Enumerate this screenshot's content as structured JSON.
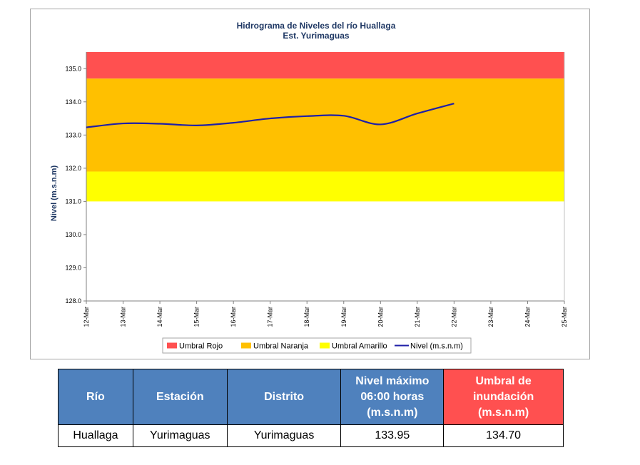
{
  "chart_data": {
    "type": "line",
    "title": "Hidrograma de Niveles del río Huallaga",
    "subtitle": "Est. Yurimaguas",
    "ylabel": "Nivel (m.s.n.m)",
    "xlabel": "",
    "ylim": [
      128.0,
      135.5
    ],
    "yticks": [
      "128.0",
      "129.0",
      "130.0",
      "131.0",
      "132.0",
      "133.0",
      "134.0",
      "135.0"
    ],
    "categories": [
      "12-Mar",
      "13-Mar",
      "14-Mar",
      "15-Mar",
      "16-Mar",
      "17-Mar",
      "18-Mar",
      "19-Mar",
      "20-Mar",
      "21-Mar",
      "22-Mar",
      "23-Mar",
      "24-Mar",
      "25-Mar"
    ],
    "bands": [
      {
        "name": "Umbral Rojo",
        "from": 134.7,
        "to": 135.5,
        "color": "#ff5050"
      },
      {
        "name": "Umbral Naranja",
        "from": 131.9,
        "to": 134.7,
        "color": "#ffc000"
      },
      {
        "name": "Umbral Amarillo",
        "from": 131.0,
        "to": 131.9,
        "color": "#ffff00"
      }
    ],
    "series": [
      {
        "name": "Nivel (m.s.n.m)",
        "color": "#1f1fa8",
        "x": [
          "12-Mar",
          "13-Mar",
          "14-Mar",
          "15-Mar",
          "16-Mar",
          "17-Mar",
          "18-Mar",
          "19-Mar",
          "20-Mar",
          "21-Mar",
          "22-Mar"
        ],
        "values": [
          133.23,
          133.35,
          133.34,
          133.29,
          133.37,
          133.5,
          133.57,
          133.58,
          133.32,
          133.65,
          133.95
        ]
      }
    ],
    "legend": {
      "position": "bottom",
      "items": [
        "Umbral Rojo",
        "Umbral Naranja",
        "Umbral Amarillo",
        "Nivel (m.s.n.m)"
      ]
    },
    "grid": false
  },
  "table": {
    "headers": [
      "Río",
      "Estación",
      "Distrito",
      "Nivel máximo 06:00 horas (m.s.n.m)",
      "Umbral de inundación (m.s.n.m)"
    ],
    "row": [
      "Huallaga",
      "Yurimaguas",
      "Yurimaguas",
      "133.95",
      "134.70"
    ]
  },
  "colors": {
    "header_blue": "#4f81bd",
    "header_red": "#ff5050"
  }
}
